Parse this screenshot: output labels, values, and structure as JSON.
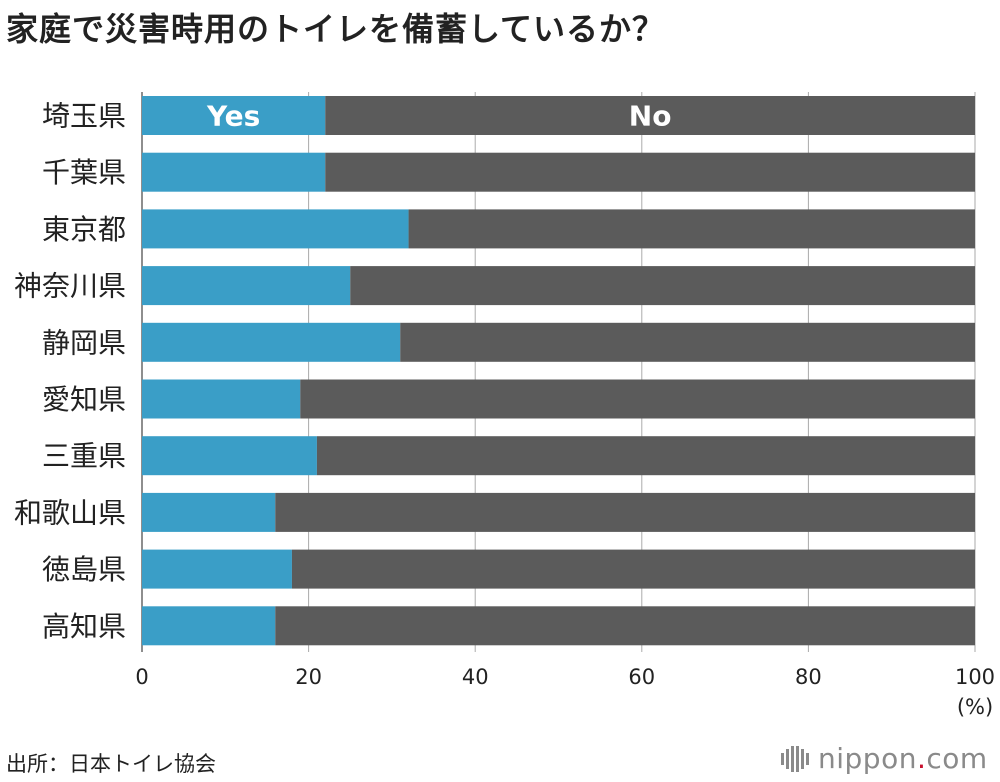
{
  "chart_data": {
    "type": "bar",
    "orientation": "horizontal",
    "stacked": true,
    "title": "家庭で災害時用のトイレを備蓄しているか？",
    "categories": [
      "埼玉県",
      "千葉県",
      "東京都",
      "神奈川県",
      "静岡県",
      "愛知県",
      "三重県",
      "和歌山県",
      "徳島県",
      "高知県"
    ],
    "series": [
      {
        "name": "Yes",
        "color": "#3a9ec7",
        "values": [
          22,
          22,
          32,
          25,
          31,
          19,
          21,
          16,
          18,
          16
        ]
      },
      {
        "name": "No",
        "color": "#5b5b5b",
        "values": [
          78,
          78,
          68,
          75,
          69,
          81,
          79,
          84,
          82,
          84
        ]
      }
    ],
    "xlim": [
      0,
      100
    ],
    "xticks": [
      0,
      20,
      40,
      60,
      80,
      100
    ],
    "xlabel": "(%)",
    "grid": true
  },
  "source": "出所：日本トイレ協会",
  "brand": {
    "name": "nippon",
    "dot": ".",
    "suffix": "com"
  }
}
